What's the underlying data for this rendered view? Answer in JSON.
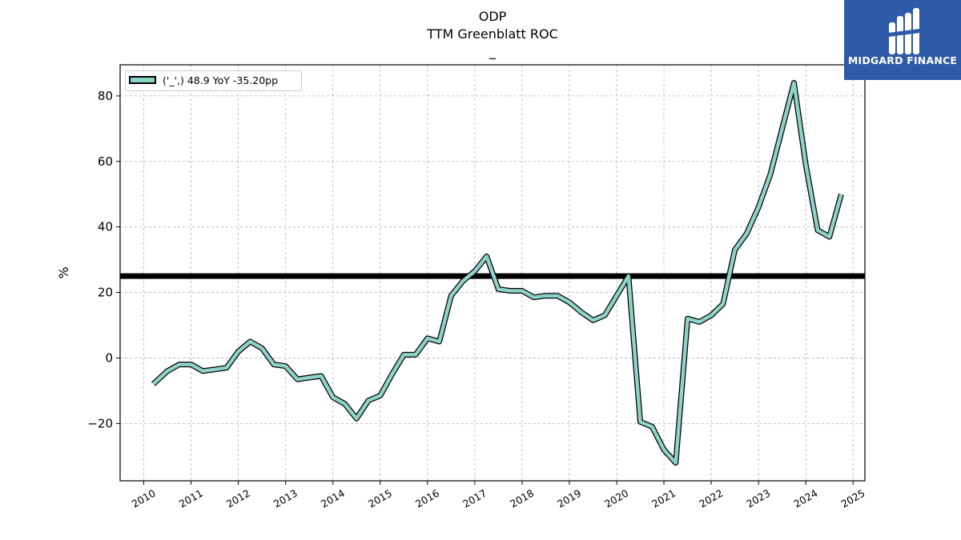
{
  "header": {
    "title": "ODP",
    "subtitle": "TTM Greenblatt ROC",
    "subtitle2": "_"
  },
  "logo": {
    "text": "MIDGARD FINANCE",
    "color": "#2f5aa8"
  },
  "chart_data": {
    "type": "line",
    "title": "ODP",
    "subtitle": "TTM Greenblatt ROC",
    "xlabel": "",
    "ylabel": "%",
    "xlim": [
      2009.5,
      2025.25
    ],
    "ylim": [
      -37.5,
      89.5
    ],
    "grid": true,
    "legend_position": "top-left",
    "x_ticks": [
      2010,
      2011,
      2012,
      2013,
      2014,
      2015,
      2016,
      2017,
      2018,
      2019,
      2020,
      2021,
      2022,
      2023,
      2024,
      2025
    ],
    "y_ticks": [
      -20,
      0,
      20,
      40,
      60,
      80
    ],
    "reference_line": {
      "y": 25,
      "color": "#000000"
    },
    "series": [
      {
        "name": "('_',) 48.9 YoY -35.20pp",
        "color": "#8dd3c7",
        "x": [
          2010.2,
          2010.5,
          2010.75,
          2011.0,
          2011.25,
          2011.5,
          2011.75,
          2012.0,
          2012.25,
          2012.5,
          2012.75,
          2013.0,
          2013.25,
          2013.5,
          2013.75,
          2014.0,
          2014.25,
          2014.5,
          2014.75,
          2015.0,
          2015.25,
          2015.5,
          2015.75,
          2016.0,
          2016.25,
          2016.5,
          2016.75,
          2017.0,
          2017.25,
          2017.5,
          2017.75,
          2018.0,
          2018.25,
          2018.5,
          2018.75,
          2019.0,
          2019.25,
          2019.5,
          2019.75,
          2020.0,
          2020.25,
          2020.5,
          2020.75,
          2021.0,
          2021.25,
          2021.5,
          2021.75,
          2022.0,
          2022.25,
          2022.5,
          2022.75,
          2023.0,
          2023.25,
          2023.5,
          2023.75,
          2024.0,
          2024.25,
          2024.5,
          2024.75
        ],
        "y": [
          -8.0,
          -4.0,
          -2.0,
          -2.0,
          -4.0,
          -3.5,
          -3.0,
          2.0,
          5.0,
          3.0,
          -2.0,
          -2.5,
          -6.5,
          -6.0,
          -5.5,
          -12.0,
          -14.0,
          -18.5,
          -13.0,
          -11.5,
          -5.0,
          1.0,
          1.0,
          6.0,
          5.0,
          19.0,
          23.5,
          26.5,
          31.0,
          21.0,
          20.5,
          20.5,
          18.5,
          19.0,
          19.0,
          17.0,
          14.0,
          11.5,
          13.0,
          19.0,
          25.0,
          -19.5,
          -21.0,
          -28.0,
          -32.0,
          12.0,
          11.0,
          13.0,
          16.5,
          33.0,
          38.0,
          46.0,
          56.0,
          70.0,
          84.0,
          59.0,
          39.0,
          37.0,
          50.0
        ]
      }
    ]
  }
}
